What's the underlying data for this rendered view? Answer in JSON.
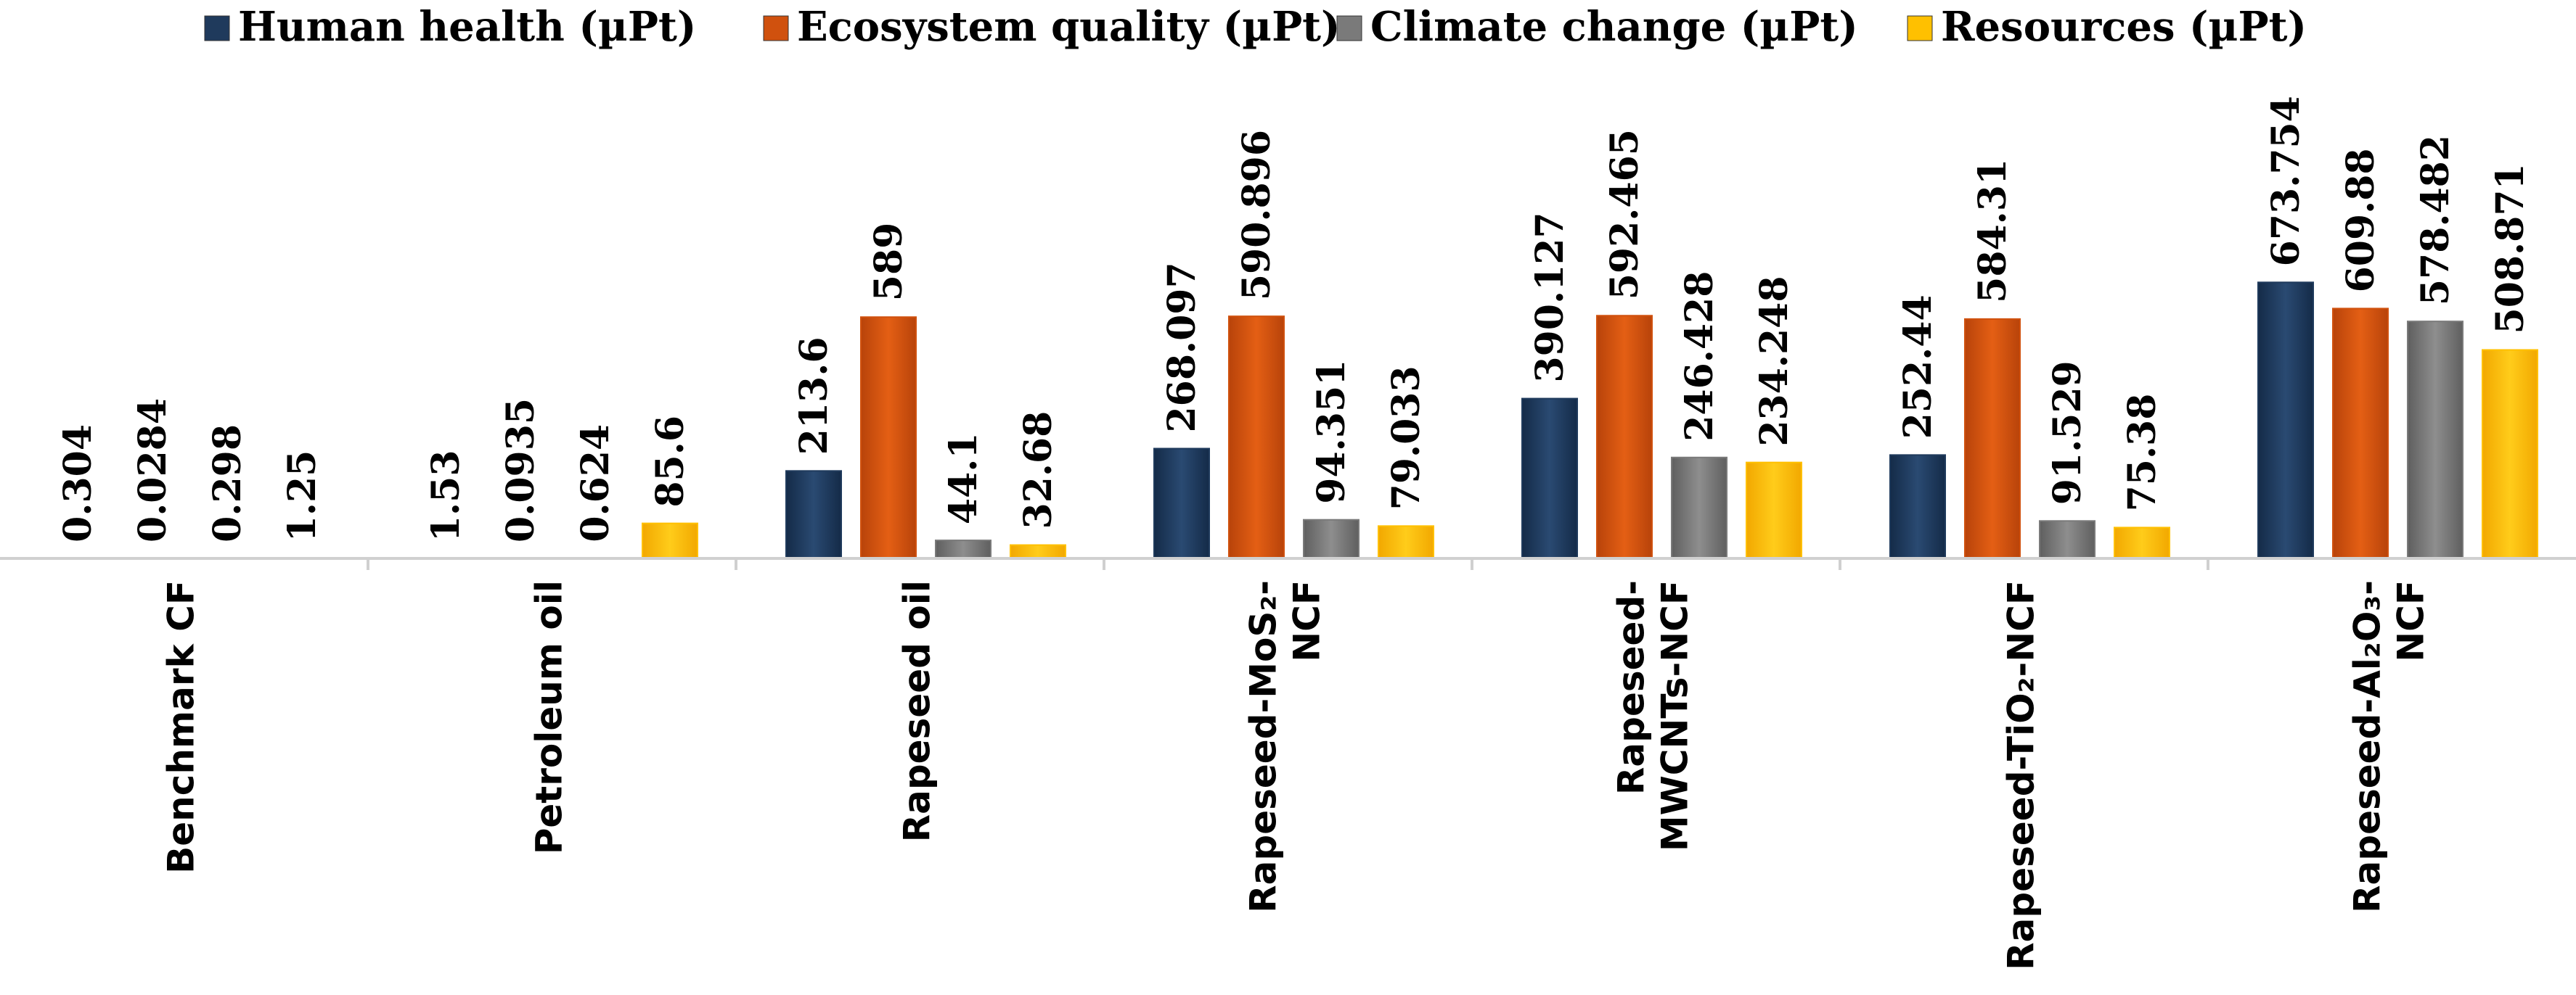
{
  "chart_data": {
    "type": "bar",
    "title": "",
    "xlabel": "",
    "ylabel": "",
    "ylim": [
      0,
      680
    ],
    "grid": false,
    "legend_position": "top",
    "categories": [
      {
        "lines": [
          "Benchmark CF"
        ]
      },
      {
        "lines": [
          "Petroleum oil"
        ]
      },
      {
        "lines": [
          "Rapeseed oil"
        ]
      },
      {
        "lines": [
          "Rapeseed-MoS₂-",
          "NCF"
        ]
      },
      {
        "lines": [
          "Rapeseed-",
          "MWCNTs-NCF"
        ]
      },
      {
        "lines": [
          "Rapeseed-TiO₂-NCF"
        ]
      },
      {
        "lines": [
          "Rapeseed-Al₂O₃-",
          "NCF"
        ]
      }
    ],
    "series": [
      {
        "name": "Human health (µPt)",
        "color": "#1f3a5c",
        "values": [
          0.304,
          1.53,
          213.6,
          268.097,
          390.127,
          252.44,
          673.754
        ],
        "labels": [
          "0.304",
          "1.53",
          "213.6",
          "268.097",
          "390.127",
          "252.44",
          "673.754"
        ]
      },
      {
        "name": "Ecosystem quality (µPt)",
        "color": "#d0510e",
        "values": [
          0.0284,
          0.0935,
          589,
          590.896,
          592.465,
          584.31,
          609.88
        ],
        "labels": [
          "0.0284",
          "0.0935",
          "589",
          "590.896",
          "592.465",
          "584.31",
          "609.88"
        ]
      },
      {
        "name": "Climate change (µPt)",
        "color": "#7a7a7a",
        "values": [
          0.298,
          0.624,
          44.1,
          94.351,
          246.428,
          91.529,
          578.482
        ],
        "labels": [
          "0.298",
          "0.624",
          "44.1",
          "94.351",
          "246.428",
          "91.529",
          "578.482"
        ]
      },
      {
        "name": "Resources (µPt)",
        "color": "#ffc000",
        "values": [
          1.25,
          85.6,
          32.68,
          79.033,
          234.248,
          75.38,
          508.871
        ],
        "labels": [
          "1.25",
          "85.6",
          "32.68",
          "79.033",
          "234.248",
          "75.38",
          "508.871"
        ]
      }
    ]
  }
}
